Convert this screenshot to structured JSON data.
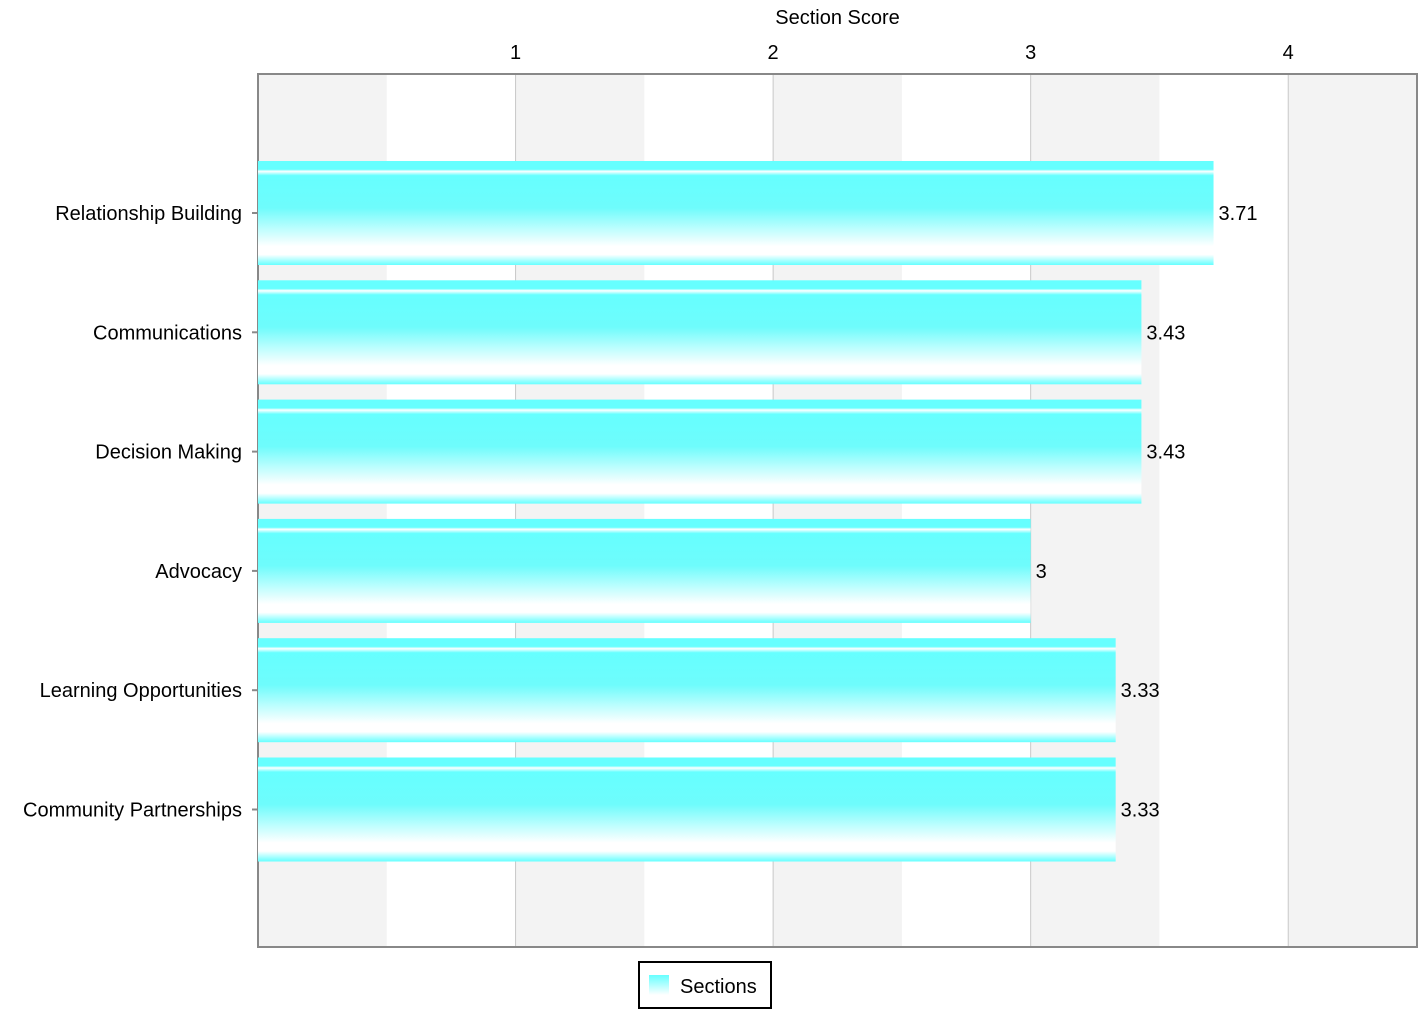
{
  "chart_data": {
    "type": "bar",
    "orientation": "horizontal",
    "xlabel": "Section Score",
    "xlabel_position": "top",
    "xlim": [
      0,
      4.5
    ],
    "xticks": [
      1,
      2,
      3,
      4
    ],
    "categories": [
      "Relationship Building",
      "Communications",
      "Decision Making",
      "Advocacy",
      "Learning Opportunities",
      "Community Partnerships"
    ],
    "series": [
      {
        "name": "Sections",
        "values": [
          3.71,
          3.43,
          3.43,
          3,
          3.33,
          3.33
        ],
        "value_labels": [
          "3.71",
          "3.43",
          "3.43",
          "3",
          "3.33",
          "3.33"
        ],
        "color": "#66ffff"
      }
    ],
    "grid": true,
    "legend_position": "bottom-center",
    "colors": {
      "bar": "#66ffff",
      "band": "#f3f3f3",
      "grid": "#c8c8c8",
      "axis": "#888888"
    }
  }
}
